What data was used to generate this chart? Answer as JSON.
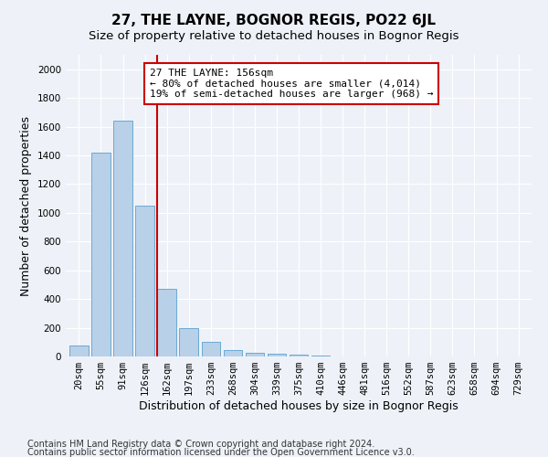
{
  "title": "27, THE LAYNE, BOGNOR REGIS, PO22 6JL",
  "subtitle": "Size of property relative to detached houses in Bognor Regis",
  "xlabel": "Distribution of detached houses by size in Bognor Regis",
  "ylabel": "Number of detached properties",
  "footnote1": "Contains HM Land Registry data © Crown copyright and database right 2024.",
  "footnote2": "Contains public sector information licensed under the Open Government Licence v3.0.",
  "categories": [
    "20sqm",
    "55sqm",
    "91sqm",
    "126sqm",
    "162sqm",
    "197sqm",
    "233sqm",
    "268sqm",
    "304sqm",
    "339sqm",
    "375sqm",
    "410sqm",
    "446sqm",
    "481sqm",
    "516sqm",
    "552sqm",
    "587sqm",
    "623sqm",
    "658sqm",
    "694sqm",
    "729sqm"
  ],
  "values": [
    75,
    1420,
    1640,
    1050,
    470,
    200,
    105,
    45,
    28,
    18,
    10,
    5,
    3,
    2,
    1,
    1,
    1,
    0,
    0,
    0,
    0
  ],
  "bar_color": "#b8d0e8",
  "bar_edge_color": "#6aaad4",
  "vline_color": "#cc0000",
  "vline_index": 4,
  "annotation_text": "27 THE LAYNE: 156sqm\n← 80% of detached houses are smaller (4,014)\n19% of semi-detached houses are larger (968) →",
  "annotation_box_color": "#ffffff",
  "annotation_box_edge_color": "#cc0000",
  "ylim": [
    0,
    2100
  ],
  "yticks": [
    0,
    200,
    400,
    600,
    800,
    1000,
    1200,
    1400,
    1600,
    1800,
    2000
  ],
  "background_color": "#eef2f8",
  "plot_background": "#eef2f8",
  "grid_color": "#ffffff",
  "title_fontsize": 11,
  "subtitle_fontsize": 9.5,
  "label_fontsize": 9,
  "tick_fontsize": 7.5,
  "footnote_fontsize": 7
}
